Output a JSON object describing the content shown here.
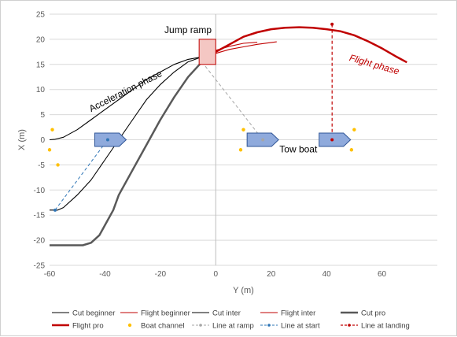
{
  "chart_data": {
    "type": "scatter",
    "xlabel": "Y (m)",
    "ylabel": "X (m)",
    "xlim": [
      -60,
      80
    ],
    "ylim": [
      -25,
      25
    ],
    "x_ticks": [
      -60,
      -40,
      -20,
      0,
      20,
      40,
      60
    ],
    "y_ticks": [
      -25,
      -20,
      -15,
      -10,
      -5,
      0,
      5,
      10,
      15,
      20,
      25
    ],
    "grid": "horizontal",
    "legend_position": "bottom",
    "annotations": {
      "acceleration": "Acceleration phase",
      "jump_ramp": "Jump ramp",
      "tow_boat": "Tow boat",
      "flight": "Flight phase"
    },
    "colors": {
      "cut": "#000000",
      "cut_pro": "#595959",
      "flight": "#c00000",
      "boat_fill": "#8faadc",
      "boat_stroke": "#2f5597",
      "channel": "#ffc000",
      "ramp_line": "#a6a6a6",
      "start_line": "#2e75b6",
      "landing_line": "#c00000",
      "ramp_fill": "#f4c7c3"
    },
    "ramp_box": {
      "x": [
        -6,
        0
      ],
      "y": [
        15,
        20
      ]
    },
    "series": [
      {
        "name": "Cut beginner",
        "style": "cut",
        "points": [
          [
            -60,
            0
          ],
          [
            -58,
            0.1
          ],
          [
            -55,
            0.5
          ],
          [
            -50,
            2
          ],
          [
            -45,
            4
          ],
          [
            -40,
            6
          ],
          [
            -35,
            8
          ],
          [
            -30,
            10
          ],
          [
            -25,
            12
          ],
          [
            -20,
            13.5
          ],
          [
            -15,
            15
          ],
          [
            -10,
            16
          ],
          [
            -5,
            16.5
          ]
        ]
      },
      {
        "name": "Flight beginner",
        "style": "flight",
        "points": [
          [
            0,
            17.2
          ],
          [
            5,
            18
          ],
          [
            10,
            18.5
          ],
          [
            15,
            19
          ],
          [
            22,
            19.5
          ]
        ]
      },
      {
        "name": "Cut inter",
        "style": "cut",
        "points": [
          [
            -60,
            -14
          ],
          [
            -57,
            -14
          ],
          [
            -55,
            -13.5
          ],
          [
            -50,
            -11
          ],
          [
            -45,
            -8
          ],
          [
            -40,
            -4
          ],
          [
            -35,
            0
          ],
          [
            -30,
            4
          ],
          [
            -25,
            8
          ],
          [
            -20,
            11
          ],
          [
            -15,
            13.5
          ],
          [
            -10,
            15.5
          ],
          [
            -5,
            16.5
          ]
        ]
      },
      {
        "name": "Flight inter",
        "style": "flight",
        "points": [
          [
            0,
            17.8
          ],
          [
            5,
            18.6
          ],
          [
            10,
            19.2
          ],
          [
            15,
            19.4
          ]
        ]
      },
      {
        "name": "Cut pro",
        "style": "cut_pro",
        "points": [
          [
            -60,
            -21
          ],
          [
            -55,
            -21
          ],
          [
            -48,
            -21
          ],
          [
            -45,
            -20.5
          ],
          [
            -42,
            -19
          ],
          [
            -40,
            -17
          ],
          [
            -37,
            -14
          ],
          [
            -35,
            -11
          ],
          [
            -30,
            -6
          ],
          [
            -25,
            -1
          ],
          [
            -20,
            4
          ],
          [
            -15,
            8.5
          ],
          [
            -10,
            12.5
          ],
          [
            -5,
            15.5
          ]
        ]
      },
      {
        "name": "Flight pro",
        "style": "flight_pro",
        "points": [
          [
            -5,
            15.5
          ],
          [
            0,
            17.5
          ],
          [
            5,
            19
          ],
          [
            10,
            20.5
          ],
          [
            15,
            21.4
          ],
          [
            20,
            22
          ],
          [
            25,
            22.3
          ],
          [
            30,
            22.4
          ],
          [
            35,
            22.3
          ],
          [
            40,
            22
          ],
          [
            45,
            21.6
          ],
          [
            50,
            20.8
          ],
          [
            55,
            19.6
          ],
          [
            60,
            18.2
          ],
          [
            65,
            16.6
          ],
          [
            69,
            15.4
          ]
        ]
      },
      {
        "name": "Boat channel",
        "style": "channel",
        "points": [
          [
            -59,
            2
          ],
          [
            -60,
            -2
          ],
          [
            -57,
            -5
          ],
          [
            10,
            2
          ],
          [
            9,
            -2
          ],
          [
            50,
            2
          ],
          [
            49,
            -2
          ]
        ]
      },
      {
        "name": "Line at ramp",
        "style": "ramp_line",
        "points": [
          [
            -5,
            15.5
          ],
          [
            17,
            0
          ]
        ]
      },
      {
        "name": "Line at start",
        "style": "start_line",
        "points": [
          [
            -58,
            -14
          ],
          [
            -39,
            0
          ]
        ]
      },
      {
        "name": "Line at landing",
        "style": "landing_line",
        "points": [
          [
            42,
            23
          ],
          [
            42,
            0
          ]
        ]
      }
    ],
    "boats": [
      [
        -38,
        0
      ],
      [
        17,
        0
      ],
      [
        43,
        0
      ]
    ]
  }
}
